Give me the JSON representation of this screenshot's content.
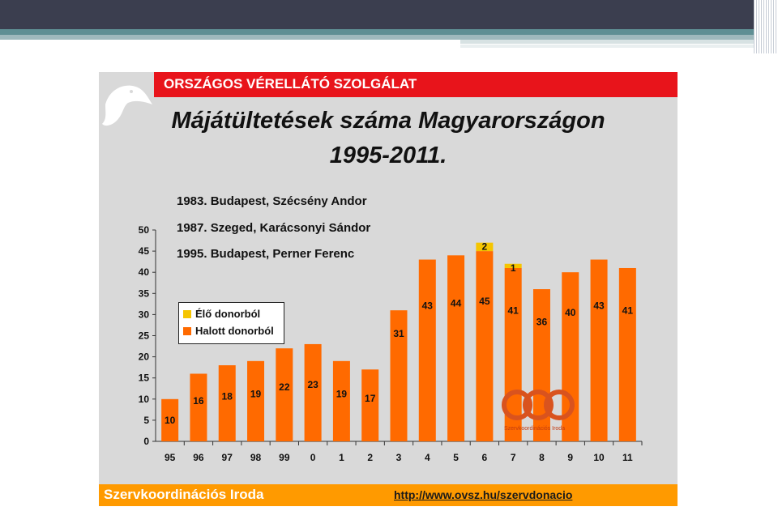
{
  "header": {
    "banner": "ORSZÁGOS VÉRELLÁTÓ SZOLGÁLAT",
    "title_line1": "Májátültetések száma Magyarországon",
    "title_line2": "1995-2011."
  },
  "notes": [
    "1983. Budapest, Szécsény Andor",
    "1987. Szeged, Karácsonyi Sándor",
    "1995. Budapest, Perner Ferenc"
  ],
  "footer": {
    "left": "Szervkoordinációs Iroda",
    "url": "http://www.ovsz.hu/szervdonacio",
    "logo_text": "Szervkoordinációs Iroda"
  },
  "colors": {
    "live_donor": "#f5c500",
    "deceased_donor": "#ff6a00",
    "banner_red": "#e8141b",
    "footer_orange": "#ff9a00"
  },
  "chart_data": {
    "type": "bar",
    "stacked": true,
    "categories": [
      "95",
      "96",
      "97",
      "98",
      "99",
      "0",
      "1",
      "2",
      "3",
      "4",
      "5",
      "6",
      "7",
      "8",
      "9",
      "10",
      "11"
    ],
    "series": [
      {
        "name": "Halott donorból",
        "values": [
          10,
          16,
          18,
          19,
          22,
          23,
          19,
          17,
          31,
          43,
          44,
          45,
          41,
          36,
          40,
          43,
          41
        ]
      },
      {
        "name": "Élő donorból",
        "values": [
          0,
          0,
          0,
          0,
          0,
          0,
          0,
          0,
          0,
          0,
          0,
          2,
          1,
          0,
          0,
          0,
          0
        ]
      }
    ],
    "ylim": [
      0,
      50
    ],
    "yticks": [
      0,
      5,
      10,
      15,
      20,
      25,
      30,
      35,
      40,
      45,
      50
    ],
    "legend": [
      "Élő donorból",
      "Halott donorból"
    ],
    "legend_position": "left-middle"
  }
}
